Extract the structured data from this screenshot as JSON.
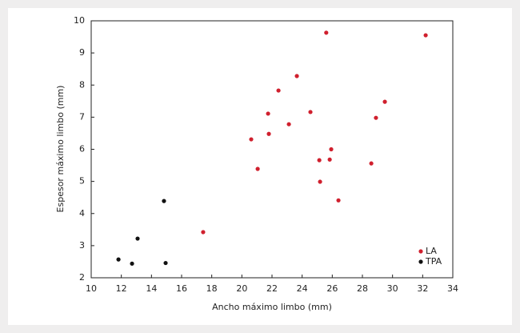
{
  "chart_data": {
    "type": "scatter",
    "x_label": "Ancho máximo limbo (mm)",
    "y_label": "Espesor máximo limbo (mm)",
    "xlim": [
      10,
      34
    ],
    "ylim": [
      2,
      10
    ],
    "xticks": [
      10,
      12,
      14,
      16,
      18,
      20,
      22,
      24,
      26,
      28,
      30,
      32,
      34
    ],
    "yticks": [
      2,
      3,
      4,
      5,
      6,
      7,
      8,
      9,
      10
    ],
    "legend_position": "lower right",
    "series": [
      {
        "name": "LA",
        "color": "#d0202e",
        "x": [
          25.6,
          32.2,
          23.65,
          22.43,
          21.74,
          24.55,
          29.49,
          28.9,
          23.12,
          21.79,
          20.62,
          25.93,
          25.14,
          25.83,
          28.59,
          21.05,
          25.19,
          26.41,
          17.43
        ],
        "values": [
          9.63,
          9.55,
          8.28,
          7.83,
          7.11,
          7.16,
          7.48,
          6.98,
          6.78,
          6.48,
          6.31,
          6.0,
          5.66,
          5.68,
          5.56,
          5.39,
          4.99,
          4.41,
          3.42
        ]
      },
      {
        "name": "TPA",
        "color": "#111111",
        "x": [
          14.83,
          13.08,
          11.81,
          12.71,
          14.94
        ],
        "values": [
          4.39,
          3.22,
          2.57,
          2.44,
          2.46
        ]
      }
    ]
  }
}
